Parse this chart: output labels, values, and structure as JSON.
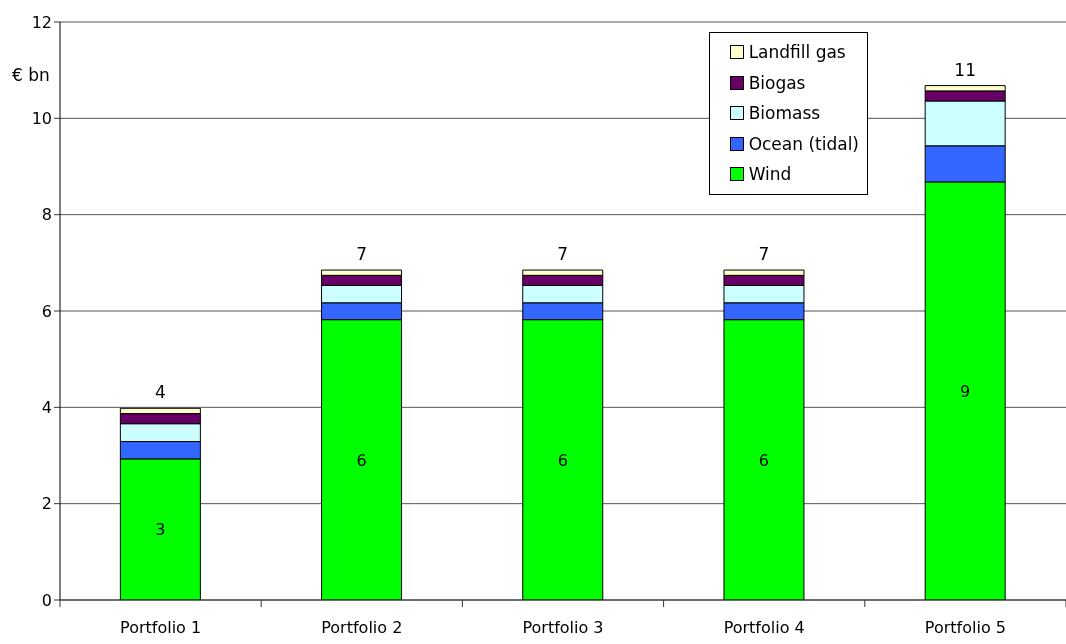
{
  "chart_data": {
    "type": "bar",
    "stacked": true,
    "ylabel": "€ bn",
    "categories": [
      "Portfolio 1",
      "Portfolio 2",
      "Portfolio 3",
      "Portfolio 4",
      "Portfolio 5"
    ],
    "series": [
      {
        "name": "Wind",
        "color": "#00ff00",
        "values": [
          2.93,
          5.82,
          5.82,
          5.82,
          8.68
        ],
        "value_labels": [
          "3",
          "6",
          "6",
          "6",
          "9"
        ]
      },
      {
        "name": "Ocean (tidal)",
        "color": "#3366ff",
        "values": [
          0.36,
          0.35,
          0.35,
          0.35,
          0.75
        ]
      },
      {
        "name": "Biomass",
        "color": "#ccffff",
        "values": [
          0.37,
          0.36,
          0.36,
          0.36,
          0.93
        ]
      },
      {
        "name": "Biogas",
        "color": "#660066",
        "values": [
          0.21,
          0.21,
          0.21,
          0.21,
          0.21
        ]
      },
      {
        "name": "Landfill gas",
        "color": "#ffffcc",
        "values": [
          0.11,
          0.11,
          0.11,
          0.11,
          0.11
        ]
      }
    ],
    "totals": [
      "4",
      "7",
      "7",
      "7",
      "11"
    ],
    "ylim": [
      0,
      12
    ],
    "yticks": [
      0,
      2,
      4,
      6,
      8,
      10,
      12
    ],
    "grid": "y",
    "legend": "top right"
  }
}
